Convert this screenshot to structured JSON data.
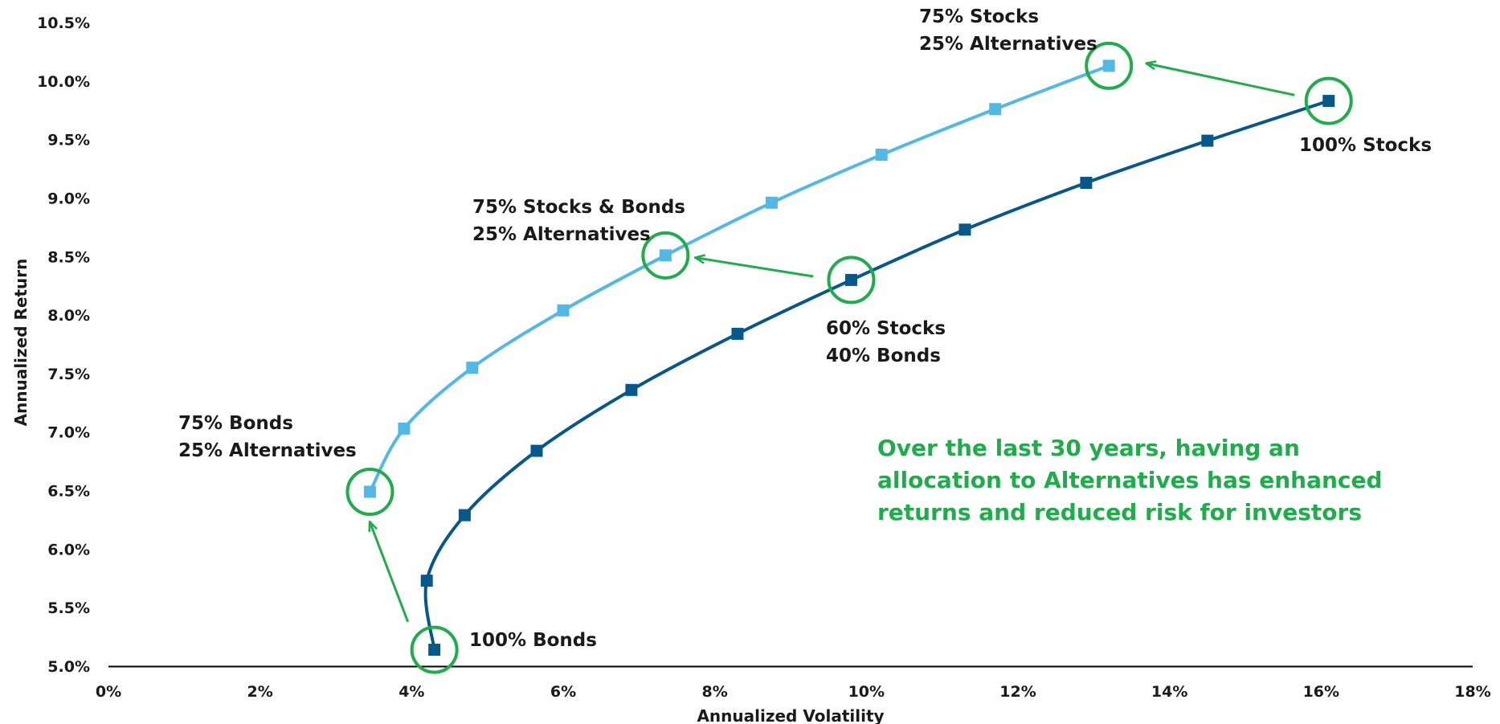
{
  "chart_data": {
    "type": "line",
    "xlabel": "Annualized Volatility",
    "ylabel": "Annualized Return",
    "xlim": [
      0,
      18
    ],
    "ylim": [
      5.0,
      10.5
    ],
    "x_ticks": [
      "0%",
      "2%",
      "4%",
      "6%",
      "8%",
      "10%",
      "12%",
      "14%",
      "16%",
      "18%"
    ],
    "y_ticks": [
      "5.0%",
      "5.5%",
      "6.0%",
      "6.5%",
      "7.0%",
      "7.5%",
      "8.0%",
      "8.5%",
      "9.0%",
      "9.5%",
      "10.0%",
      "10.5%"
    ],
    "grid": false,
    "series": [
      {
        "color": "#52b8e6",
        "points": [
          {
            "x": 3.45,
            "y": 6.49
          },
          {
            "x": 3.9,
            "y": 7.03
          },
          {
            "x": 4.8,
            "y": 7.55
          },
          {
            "x": 6.0,
            "y": 8.04
          },
          {
            "x": 7.35,
            "y": 8.51
          },
          {
            "x": 8.75,
            "y": 8.96
          },
          {
            "x": 10.2,
            "y": 9.37
          },
          {
            "x": 11.7,
            "y": 9.76
          },
          {
            "x": 13.2,
            "y": 10.13
          }
        ]
      },
      {
        "color": "#07588a",
        "points": [
          {
            "x": 4.3,
            "y": 5.14
          },
          {
            "x": 4.2,
            "y": 5.73
          },
          {
            "x": 4.7,
            "y": 6.29
          },
          {
            "x": 5.65,
            "y": 6.84
          },
          {
            "x": 6.9,
            "y": 7.36
          },
          {
            "x": 8.3,
            "y": 7.84
          },
          {
            "x": 9.8,
            "y": 8.3
          },
          {
            "x": 11.3,
            "y": 8.73
          },
          {
            "x": 12.9,
            "y": 9.13
          },
          {
            "x": 14.5,
            "y": 9.49
          },
          {
            "x": 16.1,
            "y": 9.83
          }
        ]
      }
    ],
    "highlight_color": "#1fac4a",
    "highlights": [
      {
        "x": 4.3,
        "y": 5.14
      },
      {
        "x": 3.45,
        "y": 6.49
      },
      {
        "x": 9.8,
        "y": 8.3
      },
      {
        "x": 7.35,
        "y": 8.51
      },
      {
        "x": 16.1,
        "y": 9.83
      },
      {
        "x": 13.2,
        "y": 10.13
      }
    ],
    "arrows": [
      {
        "from": {
          "x": 3.95,
          "y": 5.38
        },
        "to": {
          "x": 3.45,
          "y": 6.23
        }
      },
      {
        "from": {
          "x": 9.3,
          "y": 8.33
        },
        "to": {
          "x": 7.75,
          "y": 8.49
        }
      },
      {
        "from": {
          "x": 15.65,
          "y": 9.88
        },
        "to": {
          "x": 13.7,
          "y": 10.15
        }
      }
    ],
    "annotations": [
      {
        "lines": [
          "100% Bonds"
        ]
      },
      {
        "lines": [
          "75% Bonds",
          "25% Alternatives"
        ]
      },
      {
        "lines": [
          "60% Stocks",
          "40% Bonds"
        ]
      },
      {
        "lines": [
          "75% Stocks & Bonds",
          "25% Alternatives"
        ]
      },
      {
        "lines": [
          "100% Stocks"
        ]
      },
      {
        "lines": [
          "75% Stocks",
          "25% Alternatives"
        ]
      }
    ],
    "message": [
      "Over the last 30 years, having an",
      "allocation to Alternatives has enhanced",
      "returns and reduced risk for investors"
    ]
  }
}
